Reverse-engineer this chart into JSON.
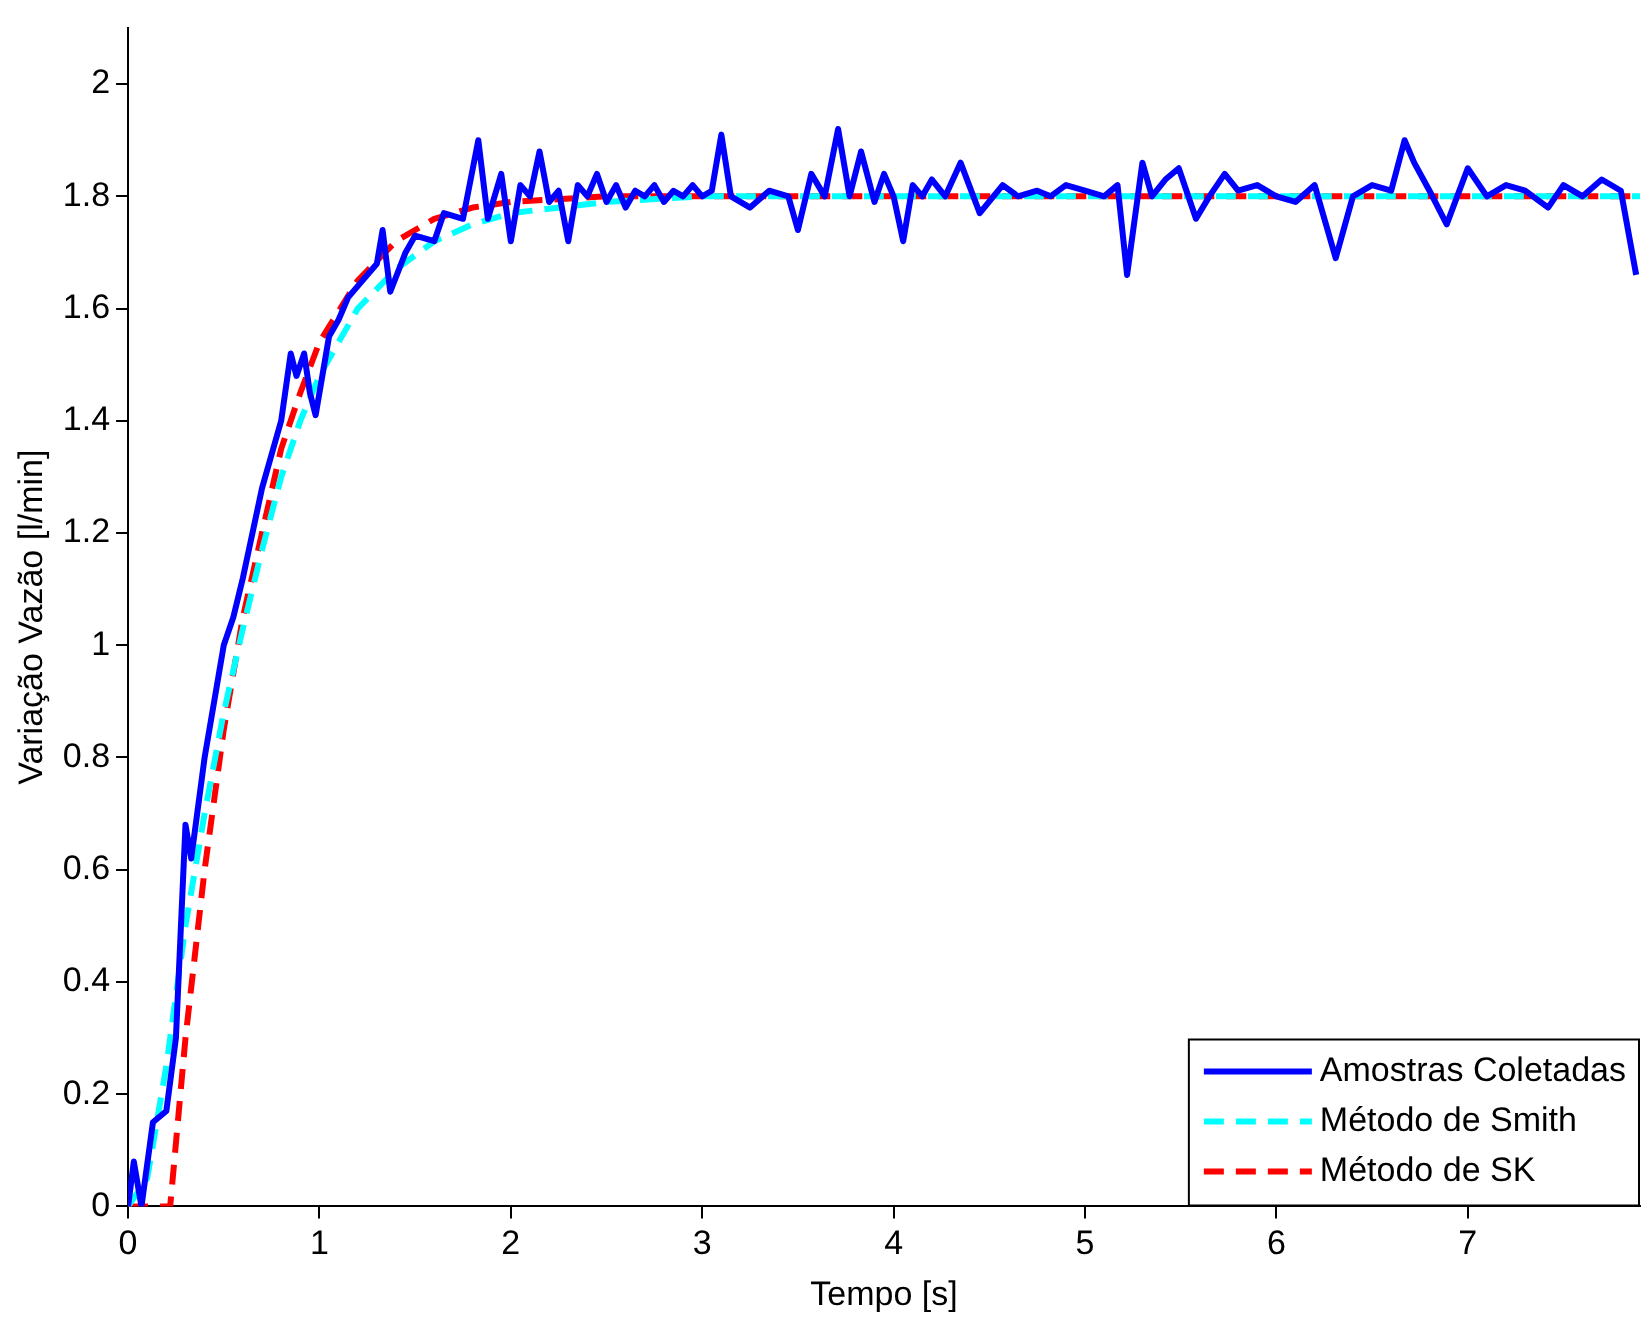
{
  "chart_data": {
    "type": "line",
    "xlabel": "Tempo [s]",
    "ylabel": "Variação Vazão [l/min]",
    "xlim": [
      0,
      7.9
    ],
    "ylim": [
      0,
      2.1
    ],
    "xticks": [
      0,
      1,
      2,
      3,
      4,
      5,
      6,
      7
    ],
    "yticks": [
      0,
      0.2,
      0.4,
      0.6,
      0.8,
      1,
      1.2,
      1.4,
      1.6,
      1.8,
      2
    ],
    "grid": false,
    "legend": "bottom right",
    "marker": "none",
    "series": [
      {
        "name": "Amostras Coletadas",
        "color": "#0000ff",
        "line_style": "solid",
        "x": [
          0,
          0.03,
          0.07,
          0.13,
          0.2,
          0.25,
          0.3,
          0.33,
          0.4,
          0.5,
          0.55,
          0.6,
          0.7,
          0.8,
          0.85,
          0.88,
          0.92,
          0.95,
          0.98,
          1.05,
          1.1,
          1.15,
          1.2,
          1.3,
          1.33,
          1.37,
          1.45,
          1.5,
          1.6,
          1.65,
          1.75,
          1.83,
          1.88,
          1.95,
          2.0,
          2.05,
          2.1,
          2.15,
          2.2,
          2.25,
          2.3,
          2.35,
          2.4,
          2.45,
          2.5,
          2.55,
          2.6,
          2.65,
          2.7,
          2.75,
          2.8,
          2.85,
          2.9,
          2.95,
          3.0,
          3.05,
          3.1,
          3.15,
          3.25,
          3.35,
          3.45,
          3.5,
          3.57,
          3.64,
          3.71,
          3.77,
          3.83,
          3.9,
          3.95,
          4.0,
          4.05,
          4.1,
          4.15,
          4.2,
          4.27,
          4.35,
          4.45,
          4.57,
          4.65,
          4.75,
          4.82,
          4.9,
          5.0,
          5.1,
          5.17,
          5.22,
          5.3,
          5.35,
          5.42,
          5.49,
          5.58,
          5.65,
          5.73,
          5.8,
          5.9,
          6.0,
          6.1,
          6.2,
          6.31,
          6.4,
          6.5,
          6.6,
          6.67,
          6.72,
          6.8,
          6.89,
          7.0,
          7.1,
          7.2,
          7.3,
          7.42,
          7.5,
          7.6,
          7.7,
          7.8,
          7.88
        ],
        "values": [
          0,
          0.08,
          0,
          0.15,
          0.17,
          0.3,
          0.68,
          0.62,
          0.8,
          1.0,
          1.05,
          1.12,
          1.28,
          1.4,
          1.52,
          1.48,
          1.52,
          1.45,
          1.41,
          1.55,
          1.58,
          1.62,
          1.64,
          1.68,
          1.74,
          1.63,
          1.7,
          1.73,
          1.72,
          1.77,
          1.76,
          1.9,
          1.76,
          1.84,
          1.72,
          1.82,
          1.8,
          1.88,
          1.79,
          1.81,
          1.72,
          1.82,
          1.8,
          1.84,
          1.79,
          1.82,
          1.78,
          1.81,
          1.8,
          1.82,
          1.79,
          1.81,
          1.8,
          1.82,
          1.8,
          1.81,
          1.91,
          1.8,
          1.78,
          1.81,
          1.8,
          1.74,
          1.84,
          1.8,
          1.92,
          1.8,
          1.88,
          1.79,
          1.84,
          1.8,
          1.72,
          1.82,
          1.8,
          1.83,
          1.8,
          1.86,
          1.77,
          1.82,
          1.8,
          1.81,
          1.8,
          1.82,
          1.81,
          1.8,
          1.82,
          1.66,
          1.86,
          1.8,
          1.83,
          1.85,
          1.76,
          1.8,
          1.84,
          1.81,
          1.82,
          1.8,
          1.79,
          1.82,
          1.69,
          1.8,
          1.82,
          1.81,
          1.9,
          1.86,
          1.81,
          1.75,
          1.85,
          1.8,
          1.82,
          1.81,
          1.78,
          1.82,
          1.8,
          1.83,
          1.81,
          1.66
        ]
      },
      {
        "name": "Método de Smith",
        "color": "#00ffff",
        "line_style": "dashed",
        "x": [
          0,
          0.1,
          0.2,
          0.3,
          0.4,
          0.5,
          0.6,
          0.7,
          0.8,
          0.9,
          1.0,
          1.2,
          1.4,
          1.6,
          1.8,
          2.0,
          2.5,
          3.0,
          7.9
        ],
        "values": [
          0,
          0.05,
          0.25,
          0.5,
          0.7,
          0.88,
          1.03,
          1.17,
          1.3,
          1.4,
          1.48,
          1.6,
          1.67,
          1.72,
          1.75,
          1.77,
          1.79,
          1.8,
          1.8
        ]
      },
      {
        "name": "Método de SK",
        "color": "#ff0000",
        "line_style": "dashed",
        "x": [
          0,
          0.22,
          0.3,
          0.4,
          0.5,
          0.6,
          0.7,
          0.8,
          0.9,
          1.0,
          1.2,
          1.4,
          1.6,
          1.8,
          2.0,
          2.5,
          3.0,
          7.9
        ],
        "values": [
          0,
          0,
          0.3,
          0.6,
          0.85,
          1.05,
          1.2,
          1.35,
          1.45,
          1.54,
          1.65,
          1.72,
          1.76,
          1.78,
          1.79,
          1.8,
          1.8,
          1.8
        ]
      }
    ]
  }
}
